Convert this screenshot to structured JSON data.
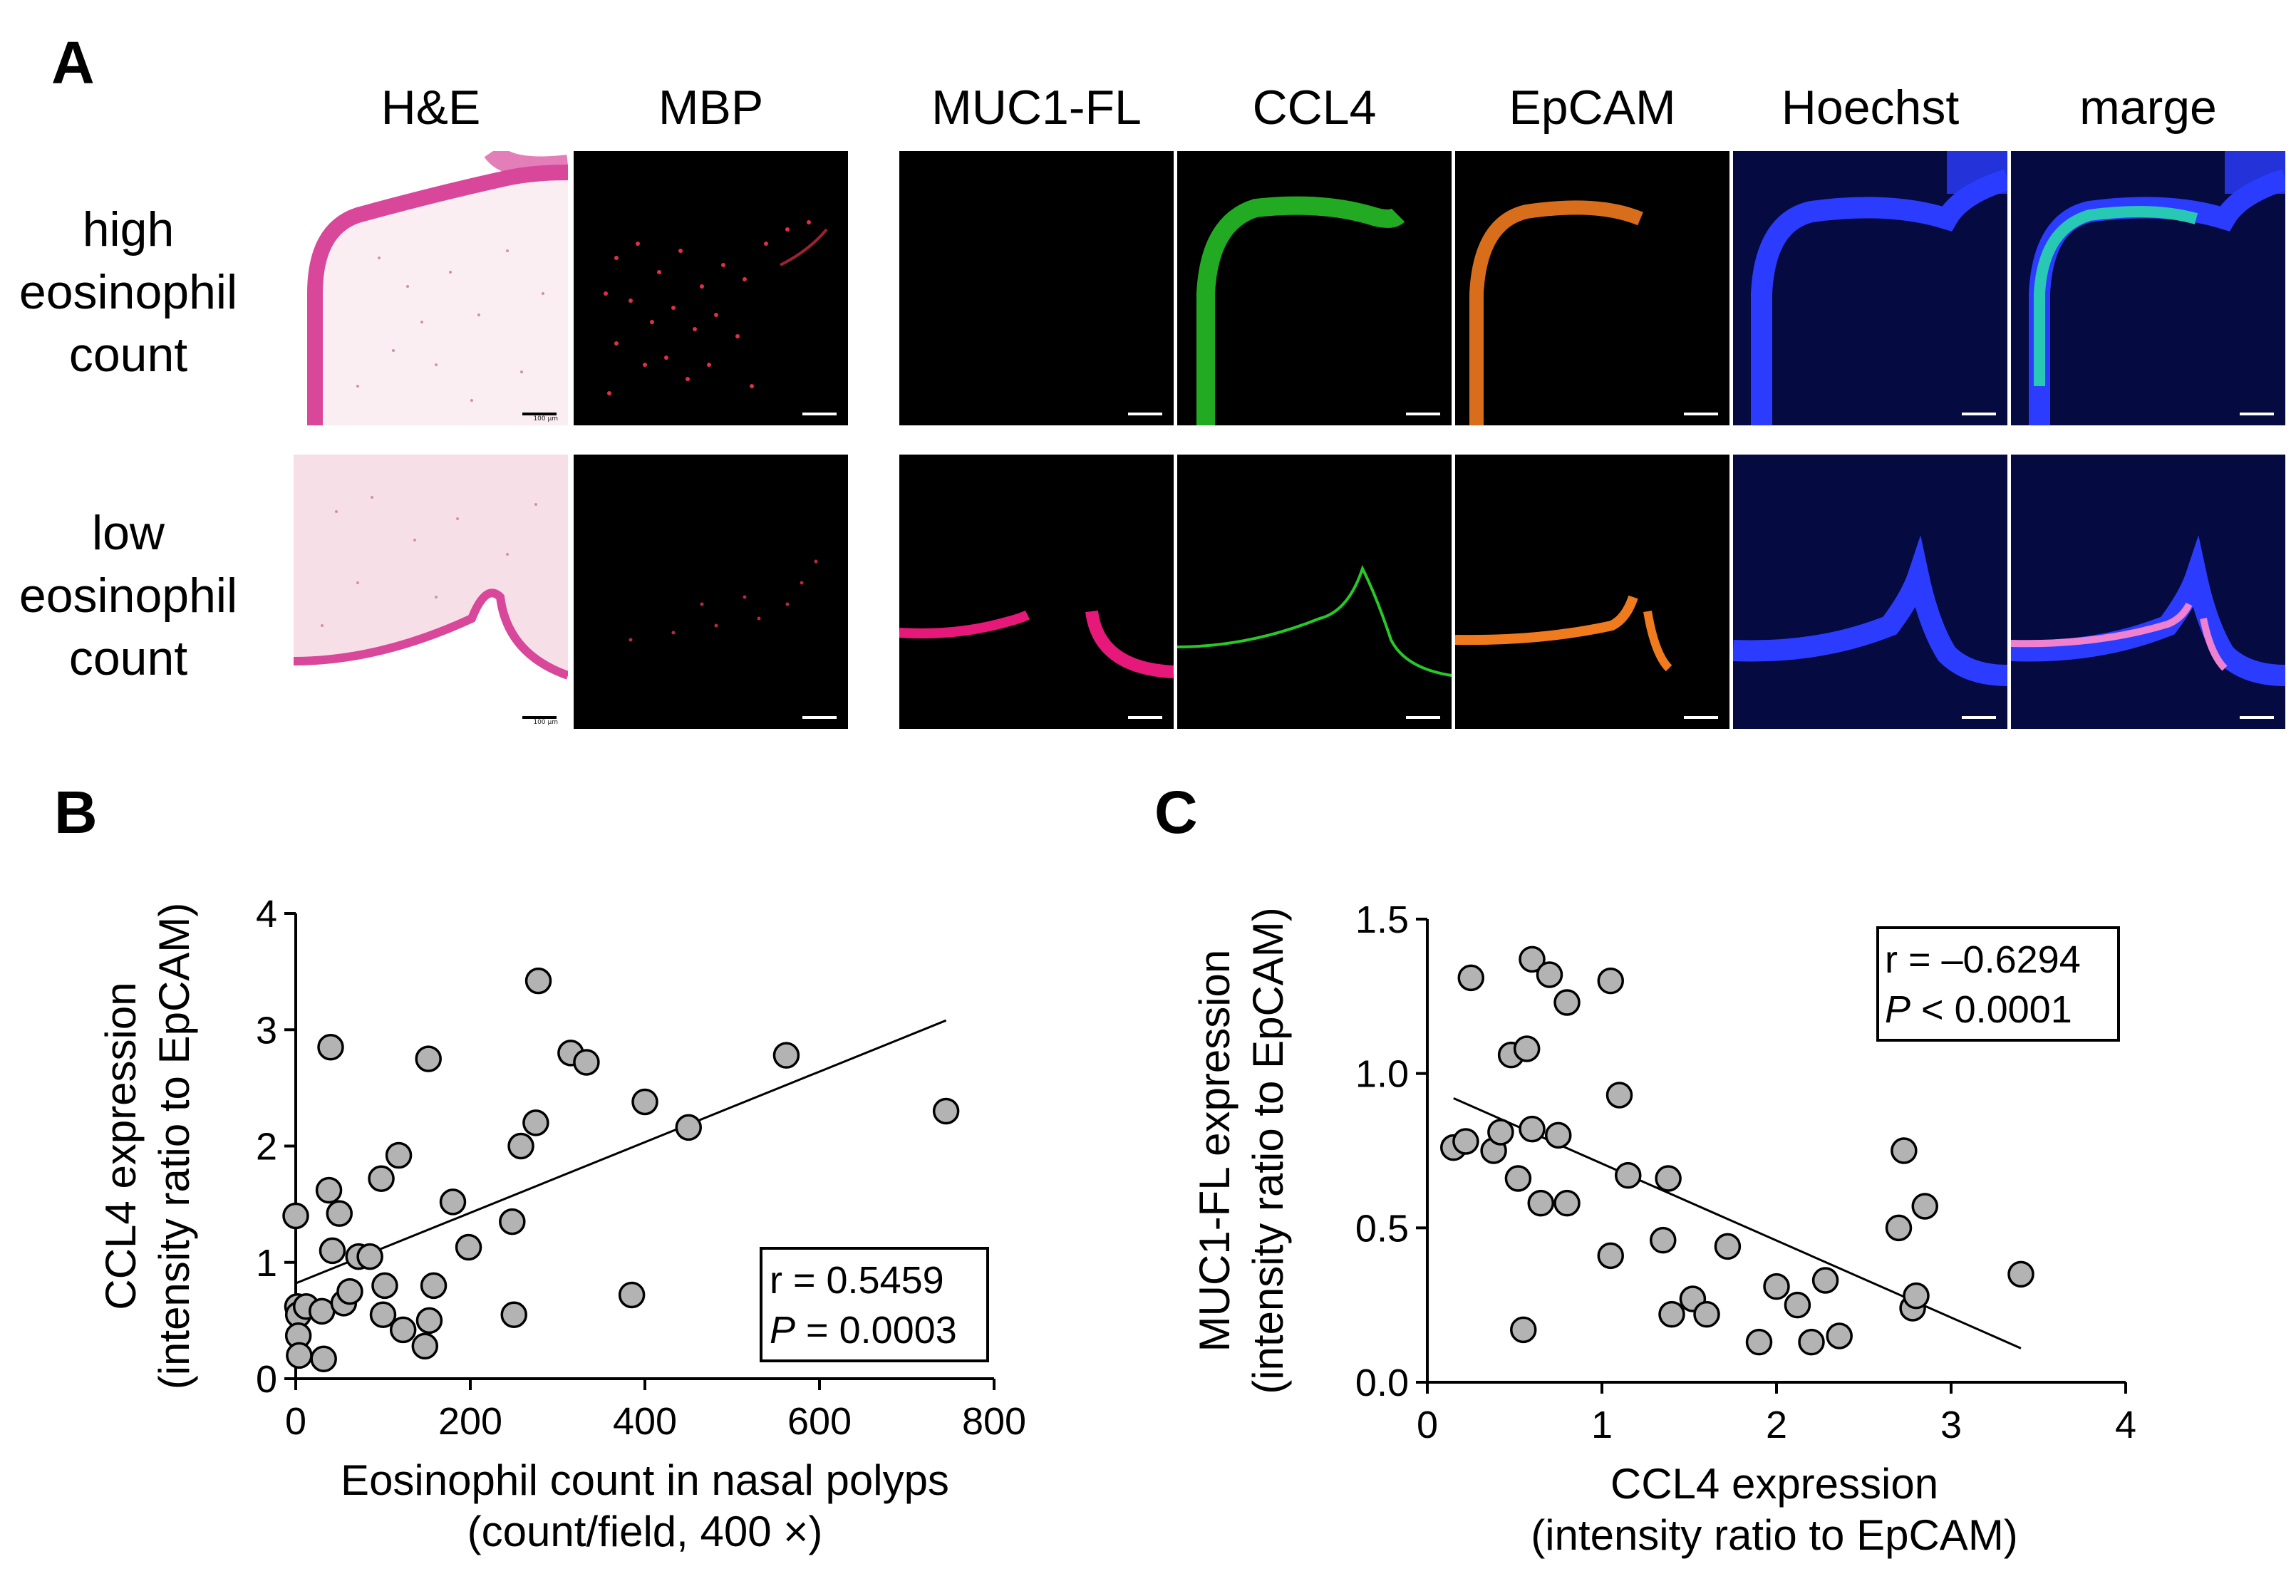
{
  "panel_a": {
    "letter": "A",
    "columns": [
      "H&E",
      "MBP",
      "MUC1-FL",
      "CCL4",
      "EpCAM",
      "Hoechst",
      "marge"
    ],
    "rows": [
      {
        "label_lines": [
          "high",
          "eosinophil",
          "count"
        ]
      },
      {
        "label_lines": [
          "low",
          "eosinophil",
          "count"
        ]
      }
    ],
    "scale_label": "100 μm"
  },
  "panel_b": {
    "letter": "B",
    "stats_r": "r = 0.5459",
    "stats_p_letter": "P",
    "stats_p_rest": " = 0.0003"
  },
  "panel_c": {
    "letter": "C",
    "stats_r": "r = –0.6294",
    "stats_p_letter": "P",
    "stats_p_rest": " < 0.0001"
  },
  "colors": {
    "marker_fill": "#b3b3b3",
    "marker_stroke": "#000000",
    "he_pink": "#e05a9c",
    "mbp_red": "#e03046",
    "muc1_magenta": "#e6197a",
    "ccl4_green": "#28c828",
    "epcam_orange": "#f07a1e",
    "hoechst_blue": "#2b3cff"
  },
  "chart_data": [
    {
      "type": "scatter",
      "xlabel": "Eosinophil count in nasal polyps",
      "xlabel2": "(count/field, 400 ×)",
      "ylabel": "CCL4 expression",
      "ylabel2": "(intensity ratio to EpCAM)",
      "xlim": [
        0,
        800
      ],
      "ylim": [
        0,
        4
      ],
      "xticks": [
        "0",
        "200",
        "400",
        "600",
        "800"
      ],
      "xtick_values": [
        0,
        200,
        400,
        600,
        800
      ],
      "yticks": [
        "0",
        "1",
        "2",
        "3",
        "4"
      ],
      "ytick_values": [
        0,
        1,
        2,
        3,
        4
      ],
      "grid": false,
      "fit_line": {
        "x": [
          0,
          745
        ],
        "y": [
          0.82,
          3.08
        ]
      },
      "points": [
        [
          0,
          1.4
        ],
        [
          2,
          0.62
        ],
        [
          3,
          0.55
        ],
        [
          3,
          0.37
        ],
        [
          4,
          0.2
        ],
        [
          12,
          0.62
        ],
        [
          30,
          0.58
        ],
        [
          32,
          0.17
        ],
        [
          38,
          1.62
        ],
        [
          40,
          2.85
        ],
        [
          42,
          1.1
        ],
        [
          50,
          1.42
        ],
        [
          55,
          0.65
        ],
        [
          62,
          0.75
        ],
        [
          72,
          1.05
        ],
        [
          85,
          1.05
        ],
        [
          98,
          1.72
        ],
        [
          100,
          0.55
        ],
        [
          102,
          0.8
        ],
        [
          118,
          1.92
        ],
        [
          123,
          0.42
        ],
        [
          148,
          0.28
        ],
        [
          152,
          2.75
        ],
        [
          153,
          0.5
        ],
        [
          158,
          0.8
        ],
        [
          180,
          1.52
        ],
        [
          198,
          1.13
        ],
        [
          248,
          1.35
        ],
        [
          250,
          0.55
        ],
        [
          258,
          2.0
        ],
        [
          275,
          2.2
        ],
        [
          278,
          3.42
        ],
        [
          315,
          2.8
        ],
        [
          333,
          2.72
        ],
        [
          385,
          0.72
        ],
        [
          400,
          2.38
        ],
        [
          450,
          2.16
        ],
        [
          562,
          2.78
        ],
        [
          745,
          2.3
        ]
      ]
    },
    {
      "type": "scatter",
      "xlabel": "CCL4 expression",
      "xlabel2": "(intensity ratio to EpCAM)",
      "ylabel": "MUC1-FL expression",
      "ylabel2": "(intensity ratio to EpCAM)",
      "xlim": [
        0,
        4
      ],
      "ylim": [
        0,
        1.5
      ],
      "xticks": [
        "0",
        "1",
        "2",
        "3",
        "4"
      ],
      "xtick_values": [
        0,
        1,
        2,
        3,
        4
      ],
      "yticks": [
        "0.0",
        "0.5",
        "1.0",
        "1.5"
      ],
      "ytick_values": [
        0,
        0.5,
        1.0,
        1.5
      ],
      "grid": false,
      "fit_line": {
        "x": [
          0.15,
          3.4
        ],
        "y": [
          0.92,
          0.11
        ]
      },
      "points": [
        [
          0.15,
          0.76
        ],
        [
          0.22,
          0.78
        ],
        [
          0.25,
          1.31
        ],
        [
          0.38,
          0.75
        ],
        [
          0.42,
          0.81
        ],
        [
          0.48,
          1.06
        ],
        [
          0.52,
          0.66
        ],
        [
          0.55,
          0.17
        ],
        [
          0.57,
          1.08
        ],
        [
          0.6,
          1.37
        ],
        [
          0.6,
          0.82
        ],
        [
          0.65,
          0.58
        ],
        [
          0.7,
          1.32
        ],
        [
          0.75,
          0.8
        ],
        [
          0.8,
          1.23
        ],
        [
          0.8,
          0.58
        ],
        [
          1.05,
          1.3
        ],
        [
          1.05,
          0.41
        ],
        [
          1.1,
          0.93
        ],
        [
          1.15,
          0.67
        ],
        [
          1.35,
          0.46
        ],
        [
          1.38,
          0.66
        ],
        [
          1.4,
          0.22
        ],
        [
          1.52,
          0.27
        ],
        [
          1.6,
          0.22
        ],
        [
          1.72,
          0.44
        ],
        [
          1.9,
          0.13
        ],
        [
          2.0,
          0.31
        ],
        [
          2.12,
          0.25
        ],
        [
          2.2,
          0.13
        ],
        [
          2.28,
          0.33
        ],
        [
          2.36,
          0.15
        ],
        [
          2.7,
          0.5
        ],
        [
          2.73,
          0.75
        ],
        [
          2.78,
          0.24
        ],
        [
          2.8,
          0.28
        ],
        [
          2.85,
          0.57
        ],
        [
          3.4,
          0.35
        ]
      ]
    }
  ]
}
